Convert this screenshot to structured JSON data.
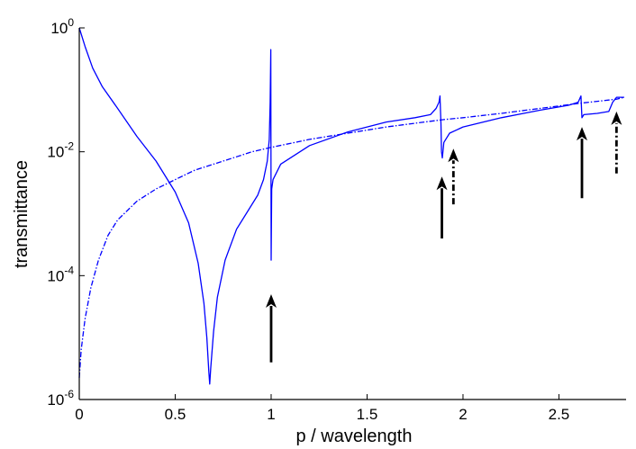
{
  "chart_data": {
    "type": "line",
    "title": "",
    "xlabel": "p / wavelength",
    "ylabel": "transmittance",
    "xlim": [
      0,
      2.85
    ],
    "ylim_log10": [
      -6,
      0
    ],
    "y_scale": "log",
    "x_ticks": [
      {
        "value": 0,
        "label": "0"
      },
      {
        "value": 0.5,
        "label": "0.5"
      },
      {
        "value": 1,
        "label": "1"
      },
      {
        "value": 1.5,
        "label": "1.5"
      },
      {
        "value": 2,
        "label": "2"
      },
      {
        "value": 2.5,
        "label": "2.5"
      }
    ],
    "y_ticks": [
      {
        "exp": 0,
        "base": "10",
        "sup": "0"
      },
      {
        "exp": -2,
        "base": "10",
        "sup": "-2"
      },
      {
        "exp": -4,
        "base": "10",
        "sup": "-4"
      },
      {
        "exp": -6,
        "base": "10",
        "sup": "-6"
      }
    ],
    "series": [
      {
        "name": "solid",
        "style": "solid",
        "color": "#0000ff",
        "points_log10": [
          [
            0.0,
            0.0
          ],
          [
            0.03,
            -0.3
          ],
          [
            0.07,
            -0.65
          ],
          [
            0.12,
            -0.95
          ],
          [
            0.2,
            -1.3
          ],
          [
            0.3,
            -1.75
          ],
          [
            0.4,
            -2.15
          ],
          [
            0.5,
            -2.65
          ],
          [
            0.57,
            -3.15
          ],
          [
            0.62,
            -3.8
          ],
          [
            0.65,
            -4.45
          ],
          [
            0.665,
            -5.0
          ],
          [
            0.675,
            -5.55
          ],
          [
            0.68,
            -5.75
          ],
          [
            0.685,
            -5.5
          ],
          [
            0.7,
            -4.9
          ],
          [
            0.72,
            -4.35
          ],
          [
            0.76,
            -3.75
          ],
          [
            0.82,
            -3.25
          ],
          [
            0.88,
            -2.95
          ],
          [
            0.93,
            -2.7
          ],
          [
            0.96,
            -2.45
          ],
          [
            0.98,
            -2.15
          ],
          [
            0.99,
            -1.8
          ],
          [
            0.995,
            -1.2
          ],
          [
            0.998,
            -0.35
          ],
          [
            1.0,
            -3.75
          ],
          [
            1.003,
            -2.6
          ],
          [
            1.01,
            -2.45
          ],
          [
            1.05,
            -2.2
          ],
          [
            1.2,
            -1.9
          ],
          [
            1.4,
            -1.68
          ],
          [
            1.6,
            -1.52
          ],
          [
            1.75,
            -1.45
          ],
          [
            1.83,
            -1.4
          ],
          [
            1.86,
            -1.3
          ],
          [
            1.875,
            -1.2
          ],
          [
            1.88,
            -1.1
          ],
          [
            1.885,
            -1.55
          ],
          [
            1.888,
            -2.0
          ],
          [
            1.892,
            -2.1
          ],
          [
            1.9,
            -1.85
          ],
          [
            1.93,
            -1.7
          ],
          [
            2.0,
            -1.6
          ],
          [
            2.2,
            -1.45
          ],
          [
            2.4,
            -1.33
          ],
          [
            2.55,
            -1.25
          ],
          [
            2.6,
            -1.2
          ],
          [
            2.615,
            -1.1
          ],
          [
            2.62,
            -1.45
          ],
          [
            2.63,
            -1.4
          ],
          [
            2.7,
            -1.38
          ],
          [
            2.76,
            -1.35
          ],
          [
            2.78,
            -1.2
          ],
          [
            2.8,
            -1.12
          ],
          [
            2.84,
            -1.12
          ]
        ]
      },
      {
        "name": "dash-dot",
        "style": "dashdot",
        "color": "#0000ff",
        "points_log10": [
          [
            0.0,
            -5.65
          ],
          [
            0.01,
            -5.2
          ],
          [
            0.03,
            -4.7
          ],
          [
            0.06,
            -4.2
          ],
          [
            0.1,
            -3.75
          ],
          [
            0.15,
            -3.35
          ],
          [
            0.2,
            -3.1
          ],
          [
            0.3,
            -2.8
          ],
          [
            0.4,
            -2.6
          ],
          [
            0.5,
            -2.45
          ],
          [
            0.6,
            -2.3
          ],
          [
            0.7,
            -2.2
          ],
          [
            0.8,
            -2.1
          ],
          [
            0.9,
            -2.0
          ],
          [
            1.0,
            -1.93
          ],
          [
            1.2,
            -1.8
          ],
          [
            1.4,
            -1.7
          ],
          [
            1.6,
            -1.6
          ],
          [
            1.8,
            -1.52
          ],
          [
            1.9,
            -1.48
          ],
          [
            2.0,
            -1.45
          ],
          [
            2.2,
            -1.38
          ],
          [
            2.4,
            -1.3
          ],
          [
            2.6,
            -1.22
          ],
          [
            2.8,
            -1.15
          ],
          [
            2.84,
            -1.12
          ]
        ]
      }
    ],
    "annotations": [
      {
        "type": "arrow",
        "style": "solid",
        "x": 1.0,
        "y_tail_log10": -5.4,
        "y_head_log10": -4.3
      },
      {
        "type": "arrow",
        "style": "solid",
        "x": 1.89,
        "y_tail_log10": -3.4,
        "y_head_log10": -2.4
      },
      {
        "type": "arrow",
        "style": "dashed",
        "x": 1.95,
        "y_tail_log10": -2.85,
        "y_head_log10": -1.95
      },
      {
        "type": "arrow",
        "style": "solid",
        "x": 2.62,
        "y_tail_log10": -2.75,
        "y_head_log10": -1.6
      },
      {
        "type": "arrow",
        "style": "dashed",
        "x": 2.8,
        "y_tail_log10": -2.35,
        "y_head_log10": -1.35
      }
    ]
  }
}
